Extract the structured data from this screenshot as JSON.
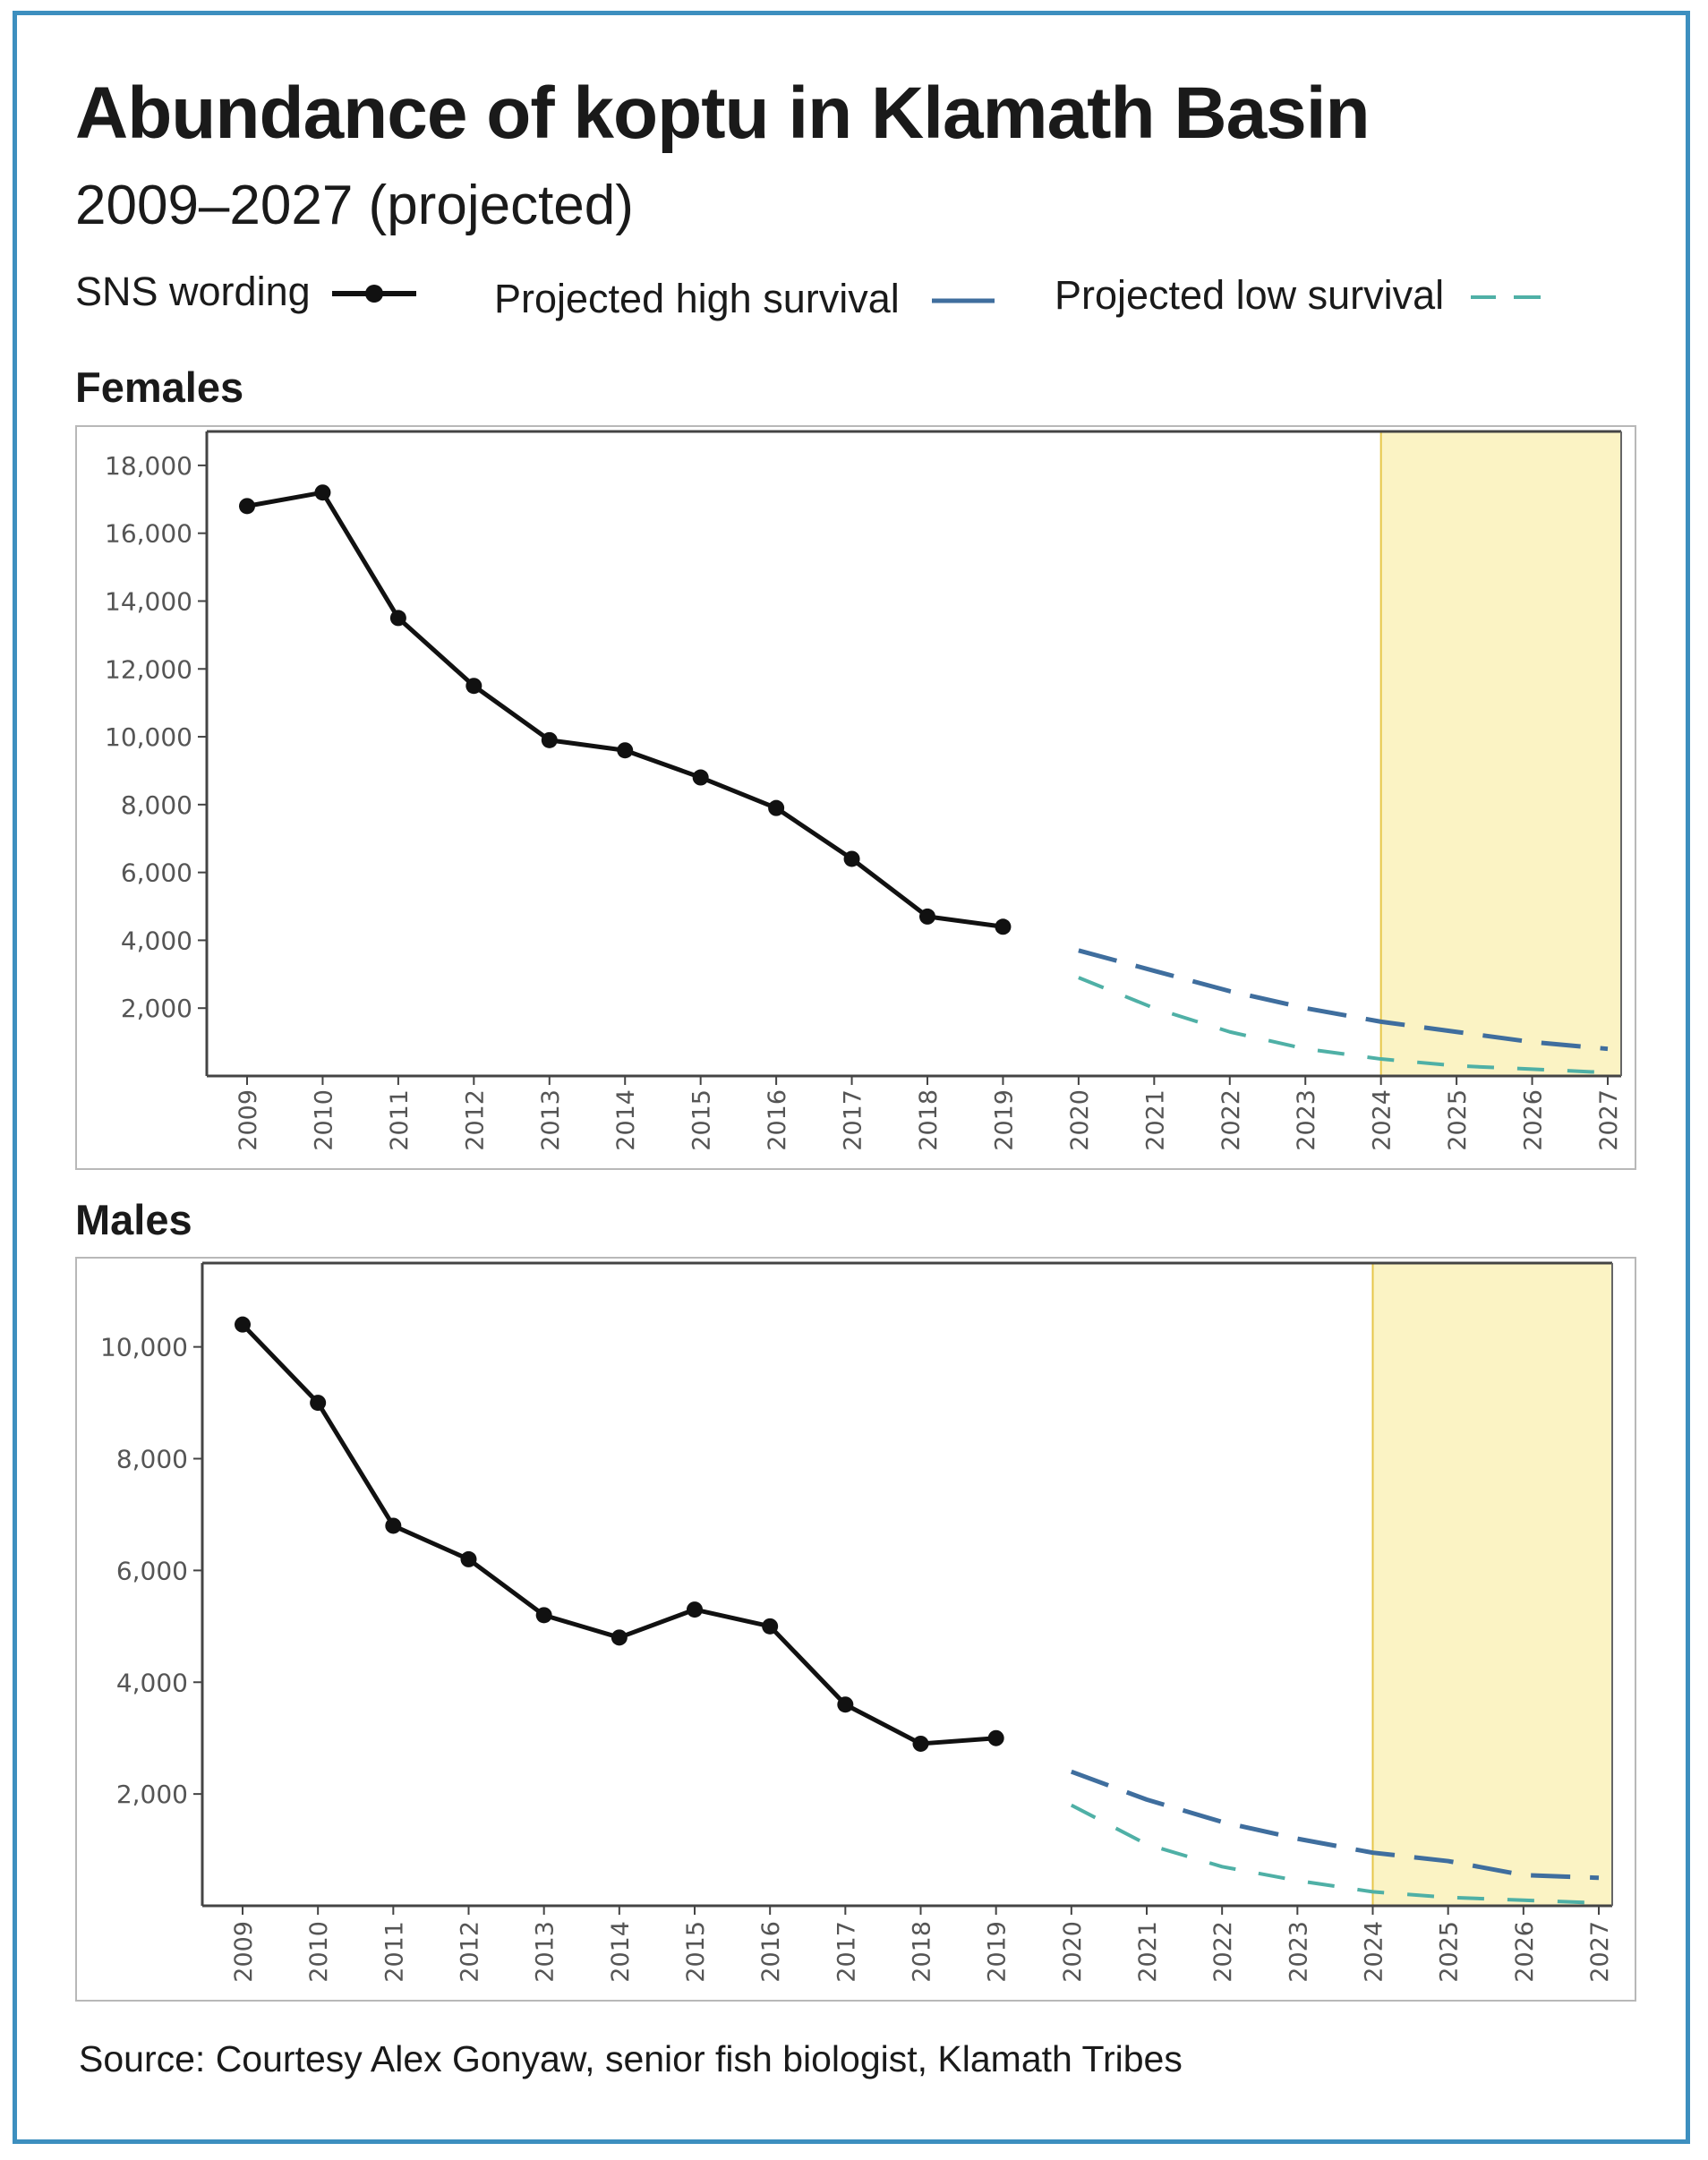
{
  "title": "Abundance of koptu in Klamath Basin",
  "subtitle": "2009–2027 (projected)",
  "legend": [
    {
      "label": "SNS wording",
      "color": "#111111",
      "style": "solid-marker"
    },
    {
      "label": "Projected high survival",
      "color": "#3f6e9e",
      "style": "dash"
    },
    {
      "label": "Projected low survival",
      "color": "#4fb0a6",
      "style": "dash"
    }
  ],
  "source": "Source: Courtesy Alex Gonyaw, senior fish biologist, Klamath Tribes",
  "chart_data": [
    {
      "type": "line",
      "panel_title": "Females",
      "x": [
        2009,
        2010,
        2011,
        2012,
        2013,
        2014,
        2015,
        2016,
        2017,
        2018,
        2019,
        2020,
        2021,
        2022,
        2023,
        2024,
        2025,
        2026,
        2027
      ],
      "x_tick_labels": [
        "2009",
        "2010",
        "2011",
        "2012",
        "2013",
        "2014",
        "2015",
        "2016",
        "2017",
        "2018",
        "2019",
        "2020",
        "2021",
        "2022",
        "2023",
        "2024",
        "2025",
        "2026",
        "2027"
      ],
      "y_ticks": [
        2000,
        4000,
        6000,
        8000,
        10000,
        12000,
        14000,
        16000,
        18000
      ],
      "y_tick_labels": [
        "2,000",
        "4,000",
        "6,000",
        "8,000",
        "10,000",
        "12,000",
        "14,000",
        "16,000",
        "18,000"
      ],
      "ylim": [
        0,
        19000
      ],
      "highlight_from": 2024,
      "highlight_color": "#fbf3c4",
      "series": [
        {
          "name": "SNS wording",
          "color": "#111111",
          "x": [
            2009,
            2010,
            2011,
            2012,
            2013,
            2014,
            2015,
            2016,
            2017,
            2018,
            2019
          ],
          "values": [
            16800,
            17200,
            13500,
            11500,
            9900,
            9600,
            8800,
            7900,
            6400,
            4700,
            4400
          ]
        },
        {
          "name": "Projected high survival",
          "color": "#3f6e9e",
          "x": [
            2020,
            2021,
            2022,
            2023,
            2024,
            2025,
            2026,
            2027
          ],
          "values": [
            3700,
            3100,
            2500,
            2000,
            1600,
            1300,
            1000,
            800
          ]
        },
        {
          "name": "Projected low survival",
          "color": "#4fb0a6",
          "x": [
            2020,
            2021,
            2022,
            2023,
            2024,
            2025,
            2026,
            2027
          ],
          "values": [
            2900,
            2000,
            1300,
            800,
            500,
            300,
            200,
            100
          ]
        }
      ]
    },
    {
      "type": "line",
      "panel_title": "Males",
      "x": [
        2009,
        2010,
        2011,
        2012,
        2013,
        2014,
        2015,
        2016,
        2017,
        2018,
        2019,
        2020,
        2021,
        2022,
        2023,
        2024,
        2025,
        2026,
        2027
      ],
      "x_tick_labels": [
        "2009",
        "2010",
        "2011",
        "2012",
        "2013",
        "2014",
        "2015",
        "2016",
        "2017",
        "2018",
        "2019",
        "2020",
        "2021",
        "2022",
        "2023",
        "2024",
        "2025",
        "2026",
        "2027"
      ],
      "y_ticks": [
        2000,
        4000,
        6000,
        8000,
        10000
      ],
      "y_tick_labels": [
        "2,000",
        "4,000",
        "6,000",
        "8,000",
        "10,000"
      ],
      "ylim": [
        0,
        11500
      ],
      "highlight_from": 2024,
      "highlight_color": "#fbf3c4",
      "series": [
        {
          "name": "SNS wording",
          "color": "#111111",
          "x": [
            2009,
            2010,
            2011,
            2012,
            2013,
            2014,
            2015,
            2016,
            2017,
            2018,
            2019
          ],
          "values": [
            10400,
            9000,
            6800,
            6200,
            5200,
            4800,
            5300,
            5000,
            3600,
            2900,
            3000
          ]
        },
        {
          "name": "Projected high survival",
          "color": "#3f6e9e",
          "x": [
            2020,
            2021,
            2022,
            2023,
            2024,
            2025,
            2026,
            2027
          ],
          "values": [
            2400,
            1900,
            1500,
            1200,
            950,
            800,
            550,
            500
          ]
        },
        {
          "name": "Projected low survival",
          "color": "#4fb0a6",
          "x": [
            2020,
            2021,
            2022,
            2023,
            2024,
            2025,
            2026,
            2027
          ],
          "values": [
            1800,
            1100,
            700,
            450,
            250,
            150,
            100,
            50
          ]
        }
      ]
    }
  ]
}
